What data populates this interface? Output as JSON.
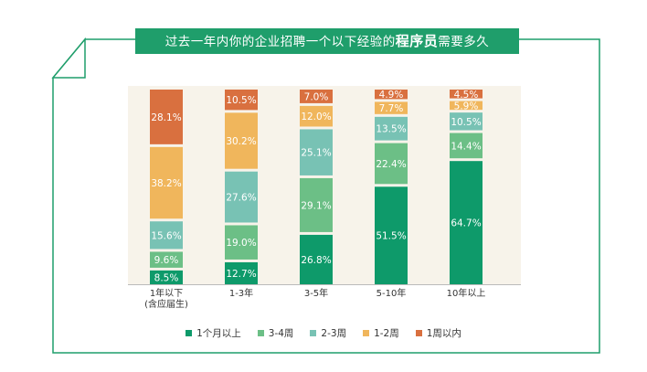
{
  "title": {
    "prefix": "过去一年内你的企业招聘一个以下经验的",
    "emphasis": "程序员",
    "suffix": "需要多久"
  },
  "colors": {
    "frame": "#1f9e6b",
    "chart_bg": "#f7f3ea",
    "axis": "#bbbbbb"
  },
  "chart_data": {
    "type": "bar",
    "stacked": true,
    "unit": "%",
    "categories": [
      "1年以下\n(含应届生)",
      "1-3年",
      "3-5年",
      "5-10年",
      "10年以上"
    ],
    "series": [
      {
        "name": "1个月以上",
        "color": "#0e9a6a",
        "values": [
          8.5,
          12.7,
          26.8,
          51.5,
          64.7
        ]
      },
      {
        "name": "3-4周",
        "color": "#6cbf86",
        "values": [
          9.6,
          19.0,
          29.1,
          22.4,
          14.4
        ]
      },
      {
        "name": "2-3周",
        "color": "#78c2b4",
        "values": [
          15.6,
          27.6,
          25.1,
          13.5,
          10.5
        ]
      },
      {
        "name": "1-2周",
        "color": "#f0b65c",
        "values": [
          38.2,
          30.2,
          12.0,
          7.7,
          5.9
        ]
      },
      {
        "name": "1周以内",
        "color": "#d9703f",
        "values": [
          28.1,
          10.5,
          7.0,
          4.9,
          4.5
        ]
      }
    ],
    "legend_position": "bottom",
    "grid": false
  }
}
